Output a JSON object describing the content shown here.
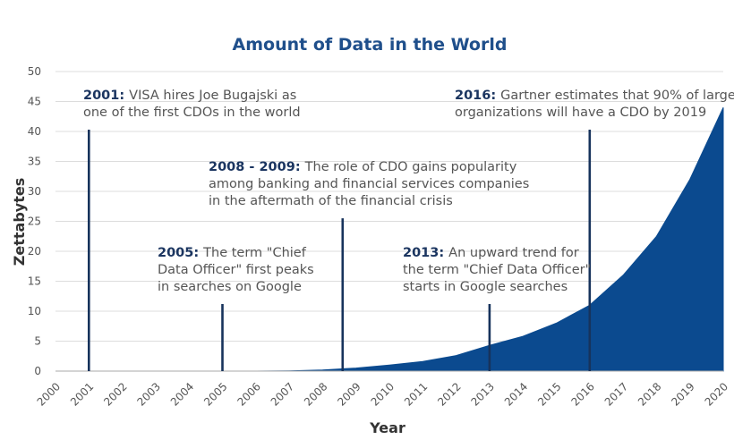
{
  "chart_data": {
    "type": "area",
    "title": "Amount of Data in the World",
    "xlabel": "Year",
    "ylabel": "Zettabytes",
    "xlim": [
      2000,
      2020
    ],
    "ylim": [
      0,
      50
    ],
    "y_ticks": [
      0,
      5,
      10,
      15,
      20,
      25,
      30,
      35,
      40,
      45,
      50
    ],
    "x_ticks": [
      "2000",
      "2001",
      "2002",
      "2003",
      "2004",
      "2005",
      "2006",
      "2007",
      "2008",
      "2009",
      "2010",
      "2011",
      "2012",
      "2013",
      "2014",
      "2015",
      "2016",
      "2017",
      "2018",
      "2019",
      "2020"
    ],
    "grid": "horizontal",
    "area_color": "#0b4a8f",
    "series": [
      {
        "x": [
          2000,
          2006,
          2007,
          2008,
          2009,
          2010,
          2011,
          2012,
          2013,
          2014,
          2015,
          2016,
          2017,
          2018,
          2019,
          2020
        ],
        "values": [
          0,
          0,
          0.05,
          0.2,
          0.5,
          1.0,
          1.6,
          2.6,
          4.3,
          5.8,
          8.0,
          11.0,
          16.0,
          22.5,
          32.0,
          44.0
        ]
      }
    ],
    "markers": [
      {
        "x": 2001,
        "y": 40.3,
        "year": "2001:",
        "text": "VISA hires Joe Bugajski as",
        "text2": "one of the first CDOs in the world"
      },
      {
        "x": 2005,
        "y": 11.2,
        "year": "2005:",
        "text": "The term \"Chief",
        "text2": "Data Officer\" first peaks",
        "text3": "in searches on Google"
      },
      {
        "x": 2008.6,
        "y": 25.5,
        "year": "2008 - 2009:",
        "text": "The role of CDO gains popularity",
        "text2": "among banking and financial services companies",
        "text3": "in the aftermath of the financial crisis"
      },
      {
        "x": 2013,
        "y": 11.2,
        "year": "2013:",
        "text": "An upward trend for",
        "text2": "the term \"Chief Data Officer\"",
        "text3": "starts in Google searches"
      },
      {
        "x": 2016,
        "y": 40.3,
        "year": "2016:",
        "text": "Gartner estimates that 90% of large",
        "text2": "organizations will have a CDO by 2019"
      }
    ]
  }
}
